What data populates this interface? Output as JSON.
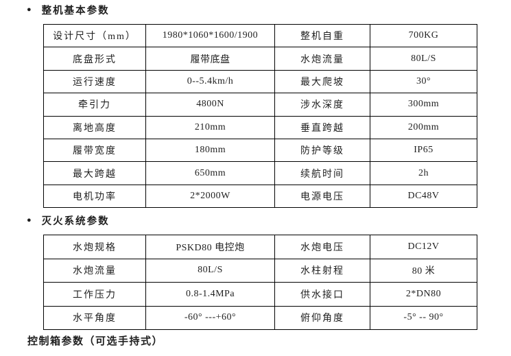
{
  "page": {
    "background": "#ffffff",
    "text_color": "#1f1f1f",
    "border_color": "#000000"
  },
  "sections": [
    {
      "bullet": "●",
      "title": "整机基本参数",
      "rows": [
        [
          "设计尺寸（mm）",
          "1980*1060*1600/1900",
          "整机自重",
          "700KG"
        ],
        [
          "底盘形式",
          "履带底盘",
          "水炮流量",
          "80L/S"
        ],
        [
          "运行速度",
          "0--5.4km/h",
          "最大爬坡",
          "30°"
        ],
        [
          "牵引力",
          "4800N",
          "涉水深度",
          "300mm"
        ],
        [
          "离地高度",
          "210mm",
          "垂直跨越",
          "200mm"
        ],
        [
          "履带宽度",
          "180mm",
          "防护等级",
          "IP65"
        ],
        [
          "最大跨越",
          "650mm",
          "续航时间",
          "2h"
        ],
        [
          "电机功率",
          "2*2000W",
          "电源电压",
          "DC48V"
        ]
      ]
    },
    {
      "bullet": "●",
      "title": "灭火系统参数",
      "rows": [
        [
          "水炮规格",
          "PSKD80 电控炮",
          "水炮电压",
          "DC12V"
        ],
        [
          "水炮流量",
          "80L/S",
          "水柱射程",
          "80 米"
        ],
        [
          "工作压力",
          "0.8-1.4MPa",
          "供水接口",
          "2*DN80"
        ],
        [
          "水平角度",
          "-60° ---+60°",
          "俯仰角度",
          "-5° -- 90°"
        ]
      ]
    }
  ],
  "footer": {
    "title": "控制箱参数（可选手持式）"
  }
}
